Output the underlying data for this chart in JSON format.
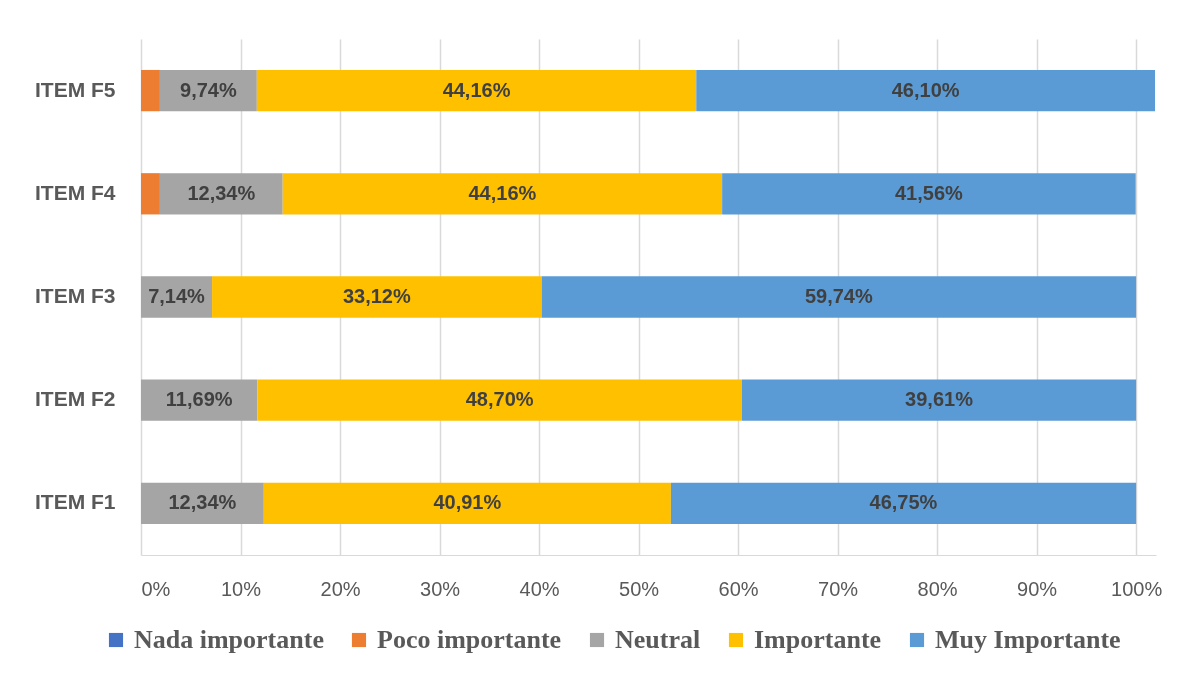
{
  "chart_data": {
    "type": "bar",
    "orientation": "horizontal",
    "stacked": true,
    "categories": [
      "ITEM F5",
      "ITEM F4",
      "ITEM F3",
      "ITEM F2",
      "ITEM F1"
    ],
    "series": [
      {
        "name": "Nada importante",
        "color": "#4472c4",
        "values": [
          0,
          0,
          0,
          0,
          0
        ]
      },
      {
        "name": "Poco importante",
        "color": "#ed7d31",
        "values": [
          1.9,
          1.9,
          0,
          0,
          0
        ]
      },
      {
        "name": "Neutral",
        "color": "#a5a5a5",
        "values": [
          9.74,
          12.34,
          7.14,
          11.69,
          12.34
        ],
        "value_labels": [
          "9,74%",
          "12,34%",
          "7,14%",
          "11,69%",
          "12,34%"
        ]
      },
      {
        "name": "Importante",
        "color": "#ffc000",
        "values": [
          44.16,
          44.16,
          33.12,
          48.7,
          40.91
        ],
        "value_labels": [
          "44,16%",
          "44,16%",
          "33,12%",
          "48,70%",
          "40,91%"
        ]
      },
      {
        "name": "Muy Importante",
        "color": "#5b9bd5",
        "values": [
          46.1,
          41.56,
          59.74,
          39.61,
          46.75
        ],
        "value_labels": [
          "46,10%",
          "41,56%",
          "59,74%",
          "39,61%",
          "46,75%"
        ]
      }
    ],
    "xlim": [
      0,
      102
    ],
    "xticks": [
      {
        "value": 0,
        "label": "0%"
      },
      {
        "value": 10,
        "label": "10%"
      },
      {
        "value": 20,
        "label": "20%"
      },
      {
        "value": 30,
        "label": "30%"
      },
      {
        "value": 40,
        "label": "40%"
      },
      {
        "value": 50,
        "label": "50%"
      },
      {
        "value": 60,
        "label": "60%"
      },
      {
        "value": 70,
        "label": "70%"
      },
      {
        "value": 80,
        "label": "80%"
      },
      {
        "value": 90,
        "label": "90%"
      },
      {
        "value": 100,
        "label": "100%"
      }
    ],
    "grid": "x",
    "legend": "bottom"
  }
}
